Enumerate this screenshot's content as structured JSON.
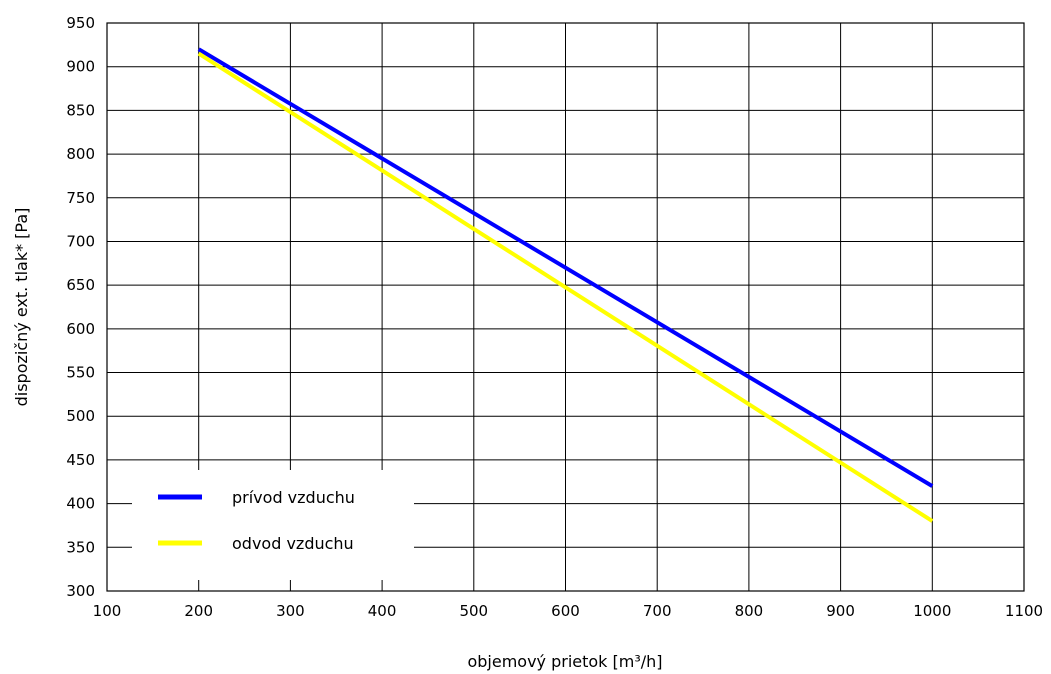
{
  "chart_data": {
    "type": "line",
    "title": "",
    "xlabel": "objemový prietok  [m³/h]",
    "ylabel": "dispozičný ext. tlak* [Pa]",
    "xlim": [
      100,
      1100
    ],
    "ylim": [
      300,
      950
    ],
    "xticks": [
      100,
      200,
      300,
      400,
      500,
      600,
      700,
      800,
      900,
      1000,
      1100
    ],
    "yticks": [
      300,
      350,
      400,
      450,
      500,
      550,
      600,
      650,
      700,
      750,
      800,
      850,
      900,
      950
    ],
    "grid": true,
    "legend_position": "bottom-left",
    "series": [
      {
        "name": "prívod vzduchu",
        "color": "#0000ff",
        "x": [
          200,
          1000
        ],
        "y": [
          920,
          420
        ]
      },
      {
        "name": "odvod vzduchu",
        "color": "#ffff00",
        "x": [
          200,
          1000
        ],
        "y": [
          915,
          380
        ]
      }
    ]
  }
}
